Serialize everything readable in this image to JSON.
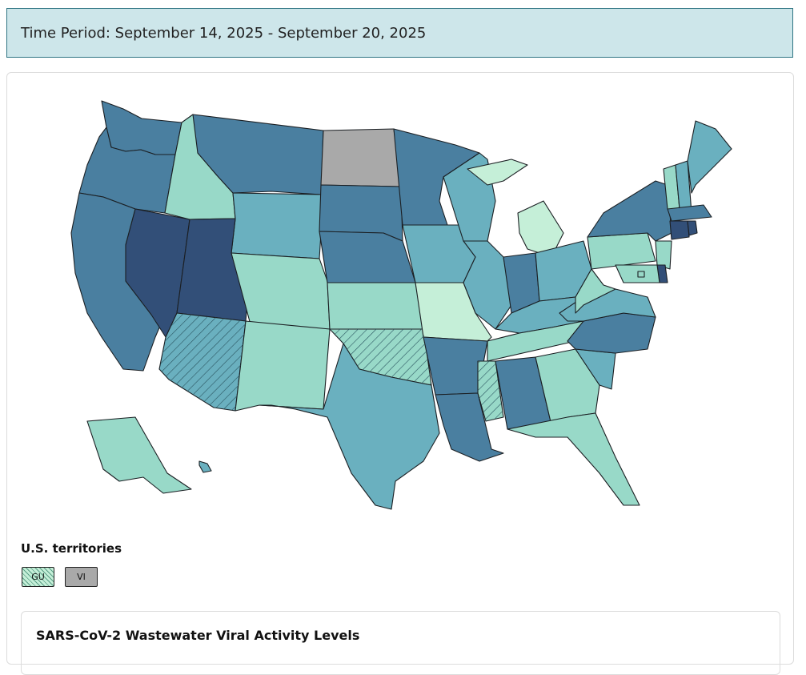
{
  "period_banner": {
    "text": "Time Period: September 14, 2025 - September 20, 2025"
  },
  "territories": {
    "title": "U.S. territories",
    "items": [
      {
        "code": "GU",
        "fill": "#c5efd8",
        "pattern": "hatched"
      },
      {
        "code": "VI",
        "fill": "#a9a9a9",
        "pattern": "none"
      }
    ]
  },
  "legend": {
    "title": "SARS-CoV-2 Wastewater Viral Activity Levels"
  },
  "colors": {
    "very_low": "#c5efd8",
    "low": "#98d9c8",
    "moderate": "#6ab0bf",
    "high": "#4a7fa0",
    "very_high": "#324f78",
    "no_data": "#a9a9a9",
    "banner_bg": "#cde6ea",
    "banner_border": "#2f7583"
  },
  "map": {
    "states": {
      "WA": "high",
      "OR": "high",
      "CA": "high",
      "NV": "very_high",
      "ID": "low",
      "MT": "high",
      "WY": "moderate",
      "UT": "very_high",
      "AZ": "moderate",
      "CO": "low",
      "NM": "low",
      "ND": "no_data",
      "SD": "high",
      "NE": "high",
      "KS": "low",
      "OK": "low",
      "TX": "moderate",
      "MN": "high",
      "IA": "moderate",
      "MO": "very_low",
      "AR": "high",
      "LA": "high",
      "WI": "moderate",
      "IL": "moderate",
      "MI": "very_low",
      "IN": "high",
      "OH": "moderate",
      "KY": "moderate",
      "TN": "low",
      "MS": "low",
      "AL": "high",
      "GA": "low",
      "FL": "low",
      "SC": "moderate",
      "NC": "high",
      "VA": "moderate",
      "WV": "low",
      "PA": "low",
      "NY": "high",
      "VT": "low",
      "NH": "moderate",
      "ME": "moderate",
      "MA": "high",
      "CT": "very_high",
      "RI": "very_high",
      "NJ": "low",
      "DE": "very_high",
      "MD": "low",
      "DC": "low",
      "AK": "low",
      "HI": "moderate"
    },
    "hatched": [
      "AZ",
      "OK",
      "MS"
    ]
  }
}
